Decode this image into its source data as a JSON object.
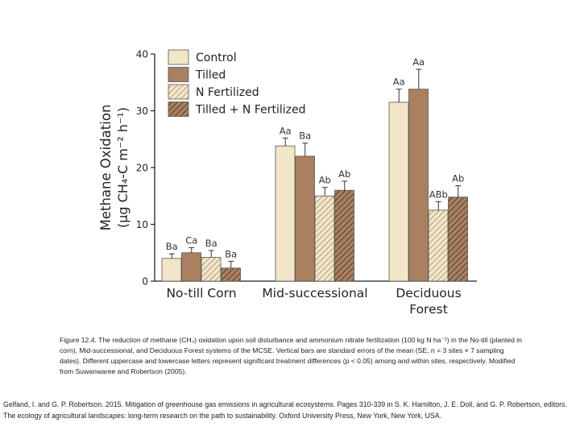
{
  "chart_data": {
    "type": "bar",
    "ylabel_line1": "Methane Oxidation",
    "ylabel_line2": "(μg CH₄-C m⁻² h⁻¹)",
    "ylim": [
      0,
      40
    ],
    "yticks": [
      "0",
      "10",
      "20",
      "30",
      "40"
    ],
    "categories": [
      {
        "lines": [
          "No-till Corn"
        ]
      },
      {
        "lines": [
          "Mid-successional"
        ]
      },
      {
        "lines": [
          "Deciduous",
          "Forest"
        ]
      }
    ],
    "series": [
      {
        "name": "Control",
        "pattern": "solid-light",
        "color": "#f3e5c7",
        "values": [
          4.0,
          23.8,
          31.5
        ],
        "errors": [
          0.8,
          1.4,
          2.3
        ],
        "labels": [
          "Ba",
          "Aa",
          "Aa"
        ]
      },
      {
        "name": "Tilled",
        "pattern": "solid-dark",
        "color": "#a98060",
        "values": [
          5.0,
          22.0,
          33.8
        ],
        "errors": [
          0.9,
          2.3,
          3.5
        ],
        "labels": [
          "Ca",
          "Ba",
          "Aa"
        ]
      },
      {
        "name": "N Fertilized",
        "pattern": "hatch-light",
        "color": "#f3e5c7",
        "values": [
          4.2,
          15.0,
          12.5
        ],
        "errors": [
          1.2,
          1.5,
          1.5
        ],
        "labels": [
          "Ba",
          "Ab",
          "ABb"
        ]
      },
      {
        "name": "Tilled + N Fertilized",
        "pattern": "hatch-dark",
        "color": "#a98060",
        "values": [
          2.3,
          16.0,
          14.8
        ],
        "errors": [
          1.2,
          1.6,
          2.0
        ],
        "labels": [
          "Ba",
          "Ab",
          "Ab"
        ]
      }
    ],
    "legend_placement": "top-inside"
  },
  "caption": "Figure 12.4. The reduction of methane (CH₄) oxidation upon soil disturbance and ammonium nitrate fertilization (100 kg N ha⁻¹) in the No-till (planted in corn), Mid-successional, and Deciduous Forest systems of the MCSE. Vertical bars are standard errors of the mean (SE, n = 3 sites × 7 sampling dates). Different uppercase and lowercase letters represent significant treatment differences (p < 0.05) among and within sites, respectively. Modified from Suwanwaree and Robertson (2005).",
  "citation": "Gelfand, I. and G. P. Robertson. 2015. Mitigation of greenhouse gas emissions in agricultural ecosystems. Pages 310-339 in S. K. Hamilton, J. E. Doll, and G. P. Robertson, editors. The ecology of agricultural landscapes: long-term research on the path to sustainability. Oxford University Press, New York, New York, USA."
}
